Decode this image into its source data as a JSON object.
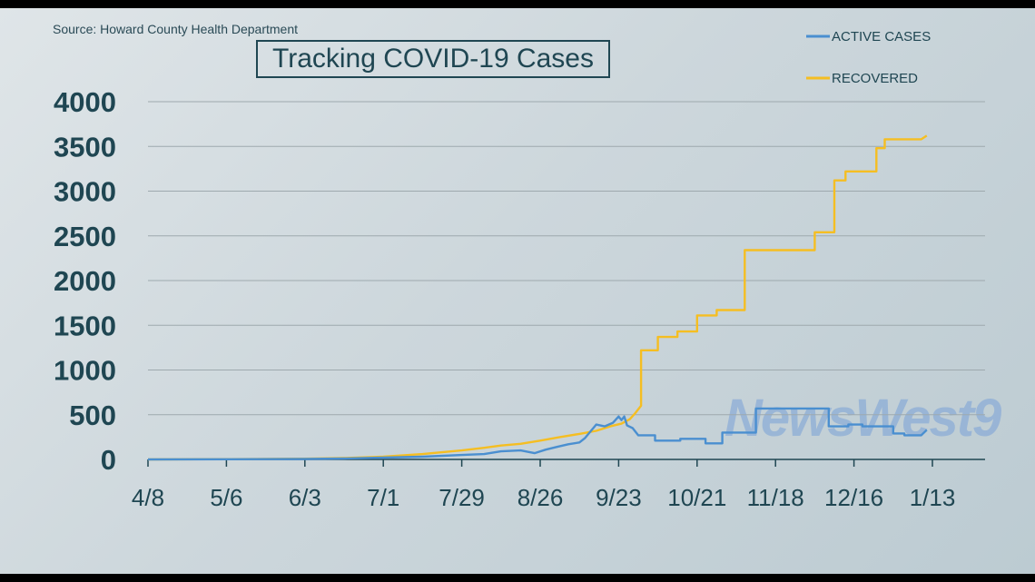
{
  "source": "Source: Howard County Health Department",
  "title": "Tracking COVID-19 Cases",
  "logo": "NewsWest9",
  "colors": {
    "active": "#4a8fd0",
    "recovered": "#f5be22",
    "grid": "#9ea9ae",
    "text": "#1f4652"
  },
  "chart_data": {
    "type": "line",
    "title": "Tracking COVID-19 Cases",
    "xlabel": "",
    "ylabel": "",
    "ylim": [
      0,
      4000
    ],
    "yticks": [
      "4000",
      "3500",
      "3000",
      "2500",
      "2000",
      "1500",
      "1000",
      "500",
      "0"
    ],
    "ytick_values": [
      4000,
      3500,
      3000,
      2500,
      2000,
      1500,
      1000,
      500,
      0
    ],
    "xticks": [
      "4/8",
      "5/6",
      "6/3",
      "7/1",
      "7/29",
      "8/26",
      "9/23",
      "10/21",
      "11/18",
      "12/16",
      "1/13"
    ],
    "x_range_days": [
      0,
      308
    ],
    "grid": true,
    "legend_position": "top-right",
    "series": [
      {
        "name": "ACTIVE CASES",
        "color": "#4a8fd0",
        "points": [
          [
            0,
            0
          ],
          [
            28,
            2
          ],
          [
            56,
            5
          ],
          [
            70,
            10
          ],
          [
            84,
            20
          ],
          [
            98,
            30
          ],
          [
            112,
            50
          ],
          [
            120,
            60
          ],
          [
            126,
            90
          ],
          [
            133,
            100
          ],
          [
            138,
            70
          ],
          [
            142,
            110
          ],
          [
            146,
            140
          ],
          [
            150,
            170
          ],
          [
            154,
            190
          ],
          [
            156,
            240
          ],
          [
            160,
            390
          ],
          [
            163,
            370
          ],
          [
            166,
            410
          ],
          [
            168,
            480
          ],
          [
            169,
            440
          ],
          [
            170,
            480
          ],
          [
            171,
            380
          ],
          [
            173,
            350
          ],
          [
            175,
            270
          ],
          [
            181,
            270
          ],
          [
            181,
            210
          ],
          [
            190,
            210
          ],
          [
            190,
            230
          ],
          [
            199,
            230
          ],
          [
            199,
            180
          ],
          [
            205,
            180
          ],
          [
            205,
            300
          ],
          [
            217,
            300
          ],
          [
            217,
            570
          ],
          [
            243,
            570
          ],
          [
            243,
            370
          ],
          [
            250,
            370
          ],
          [
            250,
            390
          ],
          [
            255,
            390
          ],
          [
            255,
            370
          ],
          [
            266,
            370
          ],
          [
            266,
            290
          ],
          [
            270,
            290
          ],
          [
            270,
            270
          ],
          [
            276,
            270
          ],
          [
            278,
            330
          ]
        ]
      },
      {
        "name": "RECOVERED",
        "color": "#f5be22",
        "points": [
          [
            0,
            0
          ],
          [
            28,
            3
          ],
          [
            56,
            8
          ],
          [
            70,
            15
          ],
          [
            84,
            30
          ],
          [
            98,
            60
          ],
          [
            112,
            100
          ],
          [
            120,
            130
          ],
          [
            126,
            155
          ],
          [
            133,
            175
          ],
          [
            140,
            210
          ],
          [
            147,
            250
          ],
          [
            154,
            285
          ],
          [
            160,
            320
          ],
          [
            165,
            370
          ],
          [
            169,
            400
          ],
          [
            172,
            450
          ],
          [
            174,
            520
          ],
          [
            176,
            600
          ],
          [
            176,
            1220
          ],
          [
            182,
            1220
          ],
          [
            182,
            1370
          ],
          [
            189,
            1370
          ],
          [
            189,
            1430
          ],
          [
            196,
            1430
          ],
          [
            196,
            1610
          ],
          [
            203,
            1610
          ],
          [
            203,
            1670
          ],
          [
            213,
            1670
          ],
          [
            213,
            2340
          ],
          [
            238,
            2340
          ],
          [
            238,
            2540
          ],
          [
            245,
            2540
          ],
          [
            245,
            3120
          ],
          [
            249,
            3120
          ],
          [
            249,
            3220
          ],
          [
            260,
            3220
          ],
          [
            260,
            3480
          ],
          [
            263,
            3480
          ],
          [
            263,
            3580
          ],
          [
            276,
            3580
          ],
          [
            278,
            3620
          ]
        ]
      }
    ]
  }
}
